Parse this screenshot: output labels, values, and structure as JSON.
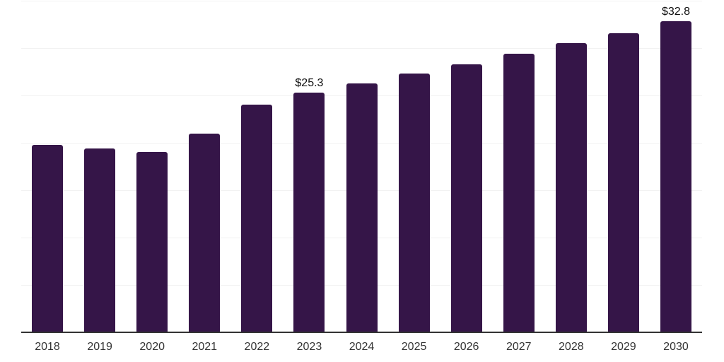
{
  "chart_data": {
    "type": "bar",
    "title": "",
    "xlabel": "",
    "ylabel": "",
    "categories": [
      "2018",
      "2019",
      "2020",
      "2021",
      "2022",
      "2023",
      "2024",
      "2025",
      "2026",
      "2027",
      "2028",
      "2029",
      "2030"
    ],
    "values": [
      19.8,
      19.4,
      19.0,
      21.0,
      24.0,
      25.3,
      26.3,
      27.3,
      28.3,
      29.4,
      30.5,
      31.6,
      32.8
    ],
    "data_labels": {
      "2023": "$25.3",
      "2030": "$32.8"
    },
    "ylim": [
      0,
      35
    ],
    "y_gridline_step": 5,
    "y_axis_tick_labels_visible": false,
    "grid": "horizontal",
    "legend": "none"
  },
  "colors": {
    "bar": "#351548",
    "gridline": "#f2f2f2",
    "axis_line": "#333333",
    "x_tick_label": "#333333",
    "data_label": "#0d0d0d",
    "background": "#ffffff"
  }
}
